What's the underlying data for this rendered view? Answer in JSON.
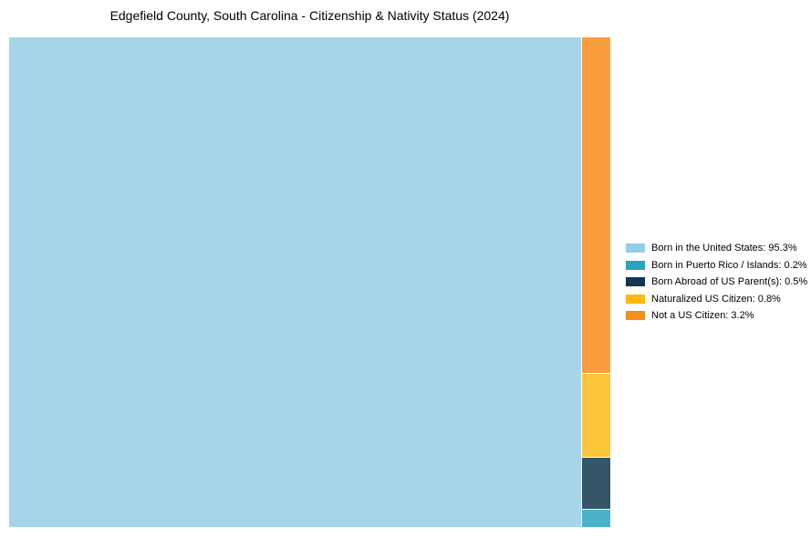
{
  "title": "Edgefield County, South Carolina - Citizenship & Nativity Status (2024)",
  "chart_data": {
    "type": "treemap",
    "title": "Edgefield County, South Carolina - Citizenship & Nativity Status (2024)",
    "unit": "%",
    "legend_position": "right",
    "grid": false,
    "series": [
      {
        "label": "Born in the United States",
        "value": 95.3,
        "color": "#92CEE9",
        "cell_color": "#A6D5EB"
      },
      {
        "label": "Born in Puerto Rico / Islands",
        "value": 0.2,
        "color": "#2AA3BF",
        "cell_color": "#4CB2C8"
      },
      {
        "label": "Born Abroad of US Parent(s)",
        "value": 0.5,
        "color": "#123750",
        "cell_color": "#345668"
      },
      {
        "label": "Naturalized US Citizen",
        "value": 0.8,
        "color": "#FDB813",
        "cell_color": "#FDC53C"
      },
      {
        "label": "Not a US Citizen",
        "value": 3.2,
        "color": "#F68C1E",
        "cell_color": "#F89C3D"
      }
    ],
    "legend": [
      "Born in the United States: 95.3%",
      "Born in Puerto Rico / Islands: 0.2%",
      "Born Abroad of US Parent(s): 0.5%",
      "Naturalized US Citizen: 0.8%",
      "Not a US Citizen: 3.2%"
    ]
  }
}
